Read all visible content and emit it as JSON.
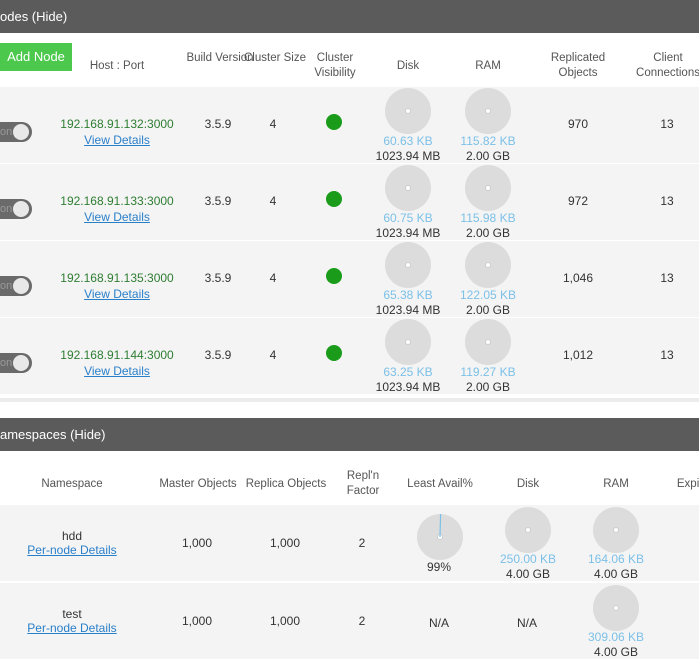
{
  "nodes": {
    "title": "odes (Hide)",
    "add_button": "Add Node",
    "columns": [
      "Host : Port",
      "Build Version",
      "Cluster Size",
      "Cluster Visibility",
      "Disk",
      "RAM",
      "Replicated Objects",
      "Client Connections"
    ],
    "rows": [
      {
        "toggle": "on",
        "host": "192.168.91.132:3000",
        "link": "View Details",
        "build": "3.5.9",
        "size": "4",
        "disk_used": "60.63 KB",
        "disk_total": "1023.94 MB",
        "ram_used": "115.82 KB",
        "ram_total": "2.00 GB",
        "replicated": "970",
        "clients": "13"
      },
      {
        "toggle": "on",
        "host": "192.168.91.133:3000",
        "link": "View Details",
        "build": "3.5.9",
        "size": "4",
        "disk_used": "60.75 KB",
        "disk_total": "1023.94 MB",
        "ram_used": "115.98 KB",
        "ram_total": "2.00 GB",
        "replicated": "972",
        "clients": "13"
      },
      {
        "toggle": "on",
        "host": "192.168.91.135:3000",
        "link": "View Details",
        "build": "3.5.9",
        "size": "4",
        "disk_used": "65.38 KB",
        "disk_total": "1023.94 MB",
        "ram_used": "122.05 KB",
        "ram_total": "2.00 GB",
        "replicated": "1,046",
        "clients": "13"
      },
      {
        "toggle": "on",
        "host": "192.168.91.144:3000",
        "link": "View Details",
        "build": "3.5.9",
        "size": "4",
        "disk_used": "63.25 KB",
        "disk_total": "1023.94 MB",
        "ram_used": "119.27 KB",
        "ram_total": "2.00 GB",
        "replicated": "1,012",
        "clients": "13"
      }
    ]
  },
  "namespaces": {
    "title": "amespaces (Hide)",
    "columns": [
      "Namespace",
      "Master Objects",
      "Replica Objects",
      "Repl'n Factor",
      "Least Avail%",
      "Disk",
      "RAM",
      "Expir"
    ],
    "rows": [
      {
        "name": "hdd",
        "link": "Per-node Details",
        "master": "1,000",
        "replica": "1,000",
        "factor": "2",
        "least_avail": {
          "value": "99%"
        },
        "disk": {
          "used": "250.00 KB",
          "total": "4.00 GB"
        },
        "ram": {
          "used": "164.06 KB",
          "total": "4.00 GB"
        }
      },
      {
        "name": "test",
        "link": "Per-node Details",
        "master": "1,000",
        "replica": "1,000",
        "factor": "2",
        "least_avail": "N/A",
        "disk": "N/A",
        "ram": {
          "used": "309.06 KB",
          "total": "4.00 GB"
        }
      }
    ]
  }
}
